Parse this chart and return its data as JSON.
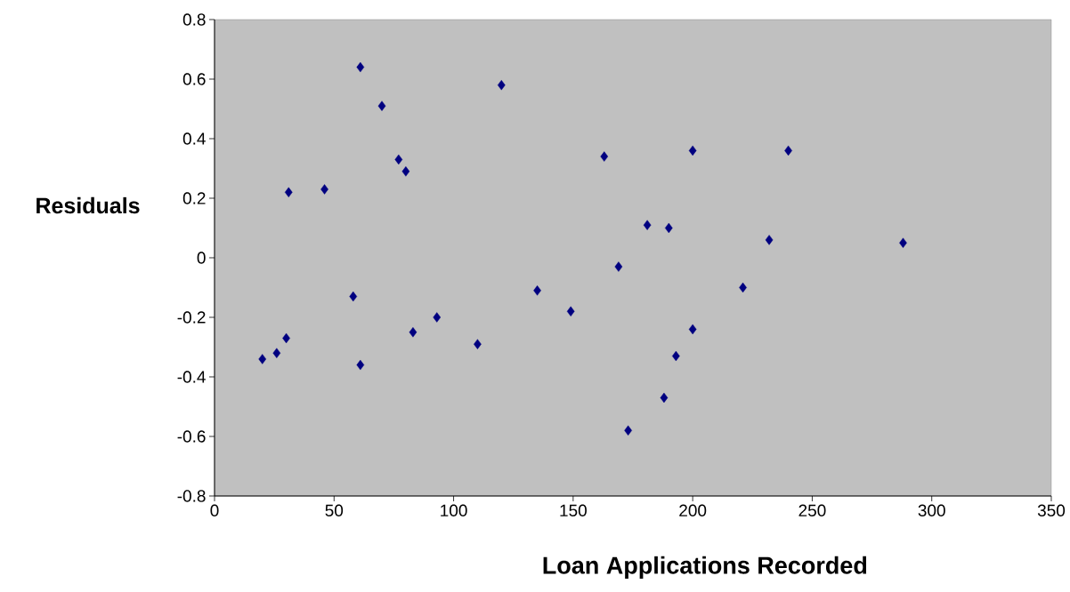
{
  "chart_data": {
    "type": "scatter",
    "xlabel": "Loan Applications Recorded",
    "ylabel": "Residuals",
    "x": [
      20,
      26,
      30,
      31,
      46,
      58,
      61,
      61,
      70,
      77,
      80,
      83,
      93,
      110,
      120,
      135,
      149,
      163,
      169,
      173,
      181,
      188,
      190,
      193,
      200,
      200,
      221,
      232,
      240,
      288
    ],
    "values": [
      -0.34,
      -0.32,
      -0.27,
      0.22,
      0.23,
      -0.13,
      0.64,
      -0.36,
      0.51,
      0.33,
      0.29,
      -0.25,
      -0.2,
      -0.29,
      0.58,
      -0.11,
      -0.18,
      0.34,
      -0.03,
      -0.58,
      0.11,
      -0.47,
      0.1,
      -0.33,
      0.36,
      -0.24,
      -0.1,
      0.06,
      0.36,
      0.05
    ],
    "color": "#000080",
    "marker": "diamond",
    "grid": false,
    "xlim": [
      0,
      350
    ],
    "xticks": [
      0,
      50,
      100,
      150,
      200,
      250,
      300,
      350
    ],
    "ylim": [
      -0.8,
      0.8
    ],
    "yticks": [
      -0.8,
      -0.6,
      -0.4,
      -0.2,
      0,
      0.2,
      0.4,
      0.6,
      0.8
    ]
  }
}
